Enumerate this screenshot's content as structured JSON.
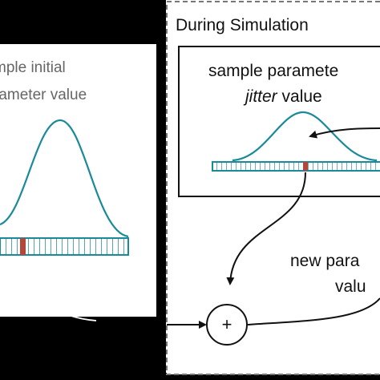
{
  "panels": {
    "left": {
      "label_line1": "mple initial",
      "label_line2": "rameter value"
    },
    "simulation": {
      "title": "During Simulation",
      "sample_line1": "sample paramete",
      "sample_italic": "jitter",
      "sample_rest": " value",
      "new_line1": "new para",
      "new_line2": "valu"
    },
    "operator": "+"
  }
}
